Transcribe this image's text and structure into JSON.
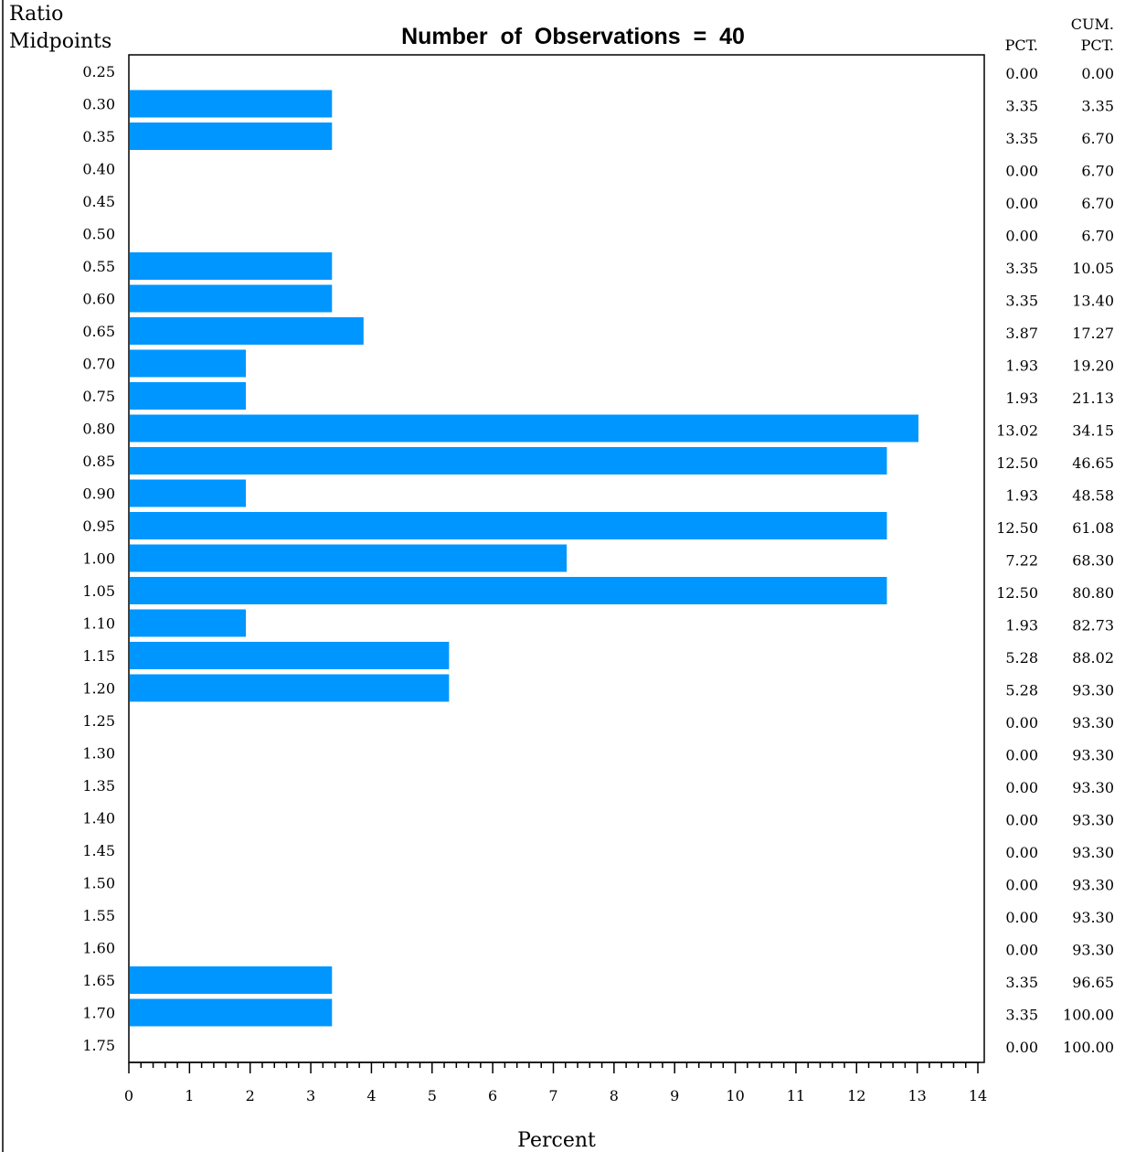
{
  "chart_data": {
    "type": "bar",
    "orientation": "horizontal",
    "title": "Number  of  Observations  =  40",
    "ylabel_line1": "Ratio",
    "ylabel_line2": "Midpoints",
    "xlabel": "Percent",
    "pct_header": "PCT.",
    "cum_header_line1": "CUM.",
    "cum_header_line2": "PCT.",
    "xlim": [
      0,
      14
    ],
    "xticks": [
      "0",
      "1",
      "2",
      "3",
      "4",
      "5",
      "6",
      "7",
      "8",
      "9",
      "10",
      "11",
      "12",
      "13",
      "14"
    ],
    "categories": [
      "0.25",
      "0.30",
      "0.35",
      "0.40",
      "0.45",
      "0.50",
      "0.55",
      "0.60",
      "0.65",
      "0.70",
      "0.75",
      "0.80",
      "0.85",
      "0.90",
      "0.95",
      "1.00",
      "1.05",
      "1.10",
      "1.15",
      "1.20",
      "1.25",
      "1.30",
      "1.35",
      "1.40",
      "1.45",
      "1.50",
      "1.55",
      "1.60",
      "1.65",
      "1.70",
      "1.75"
    ],
    "values": [
      0.0,
      3.35,
      3.35,
      0.0,
      0.0,
      0.0,
      3.35,
      3.35,
      3.87,
      1.93,
      1.93,
      13.02,
      12.5,
      1.93,
      12.5,
      7.22,
      12.5,
      1.93,
      5.28,
      5.28,
      0.0,
      0.0,
      0.0,
      0.0,
      0.0,
      0.0,
      0.0,
      0.0,
      3.35,
      3.35,
      0.0
    ],
    "pct_labels": [
      "0.00",
      "3.35",
      "3.35",
      "0.00",
      "0.00",
      "0.00",
      "3.35",
      "3.35",
      "3.87",
      "1.93",
      "1.93",
      "13.02",
      "12.50",
      "1.93",
      "12.50",
      "7.22",
      "12.50",
      "1.93",
      "5.28",
      "5.28",
      "0.00",
      "0.00",
      "0.00",
      "0.00",
      "0.00",
      "0.00",
      "0.00",
      "0.00",
      "3.35",
      "3.35",
      "0.00"
    ],
    "cum_labels": [
      "0.00",
      "3.35",
      "6.70",
      "6.70",
      "6.70",
      "6.70",
      "10.05",
      "13.40",
      "17.27",
      "19.20",
      "21.13",
      "34.15",
      "46.65",
      "48.58",
      "61.08",
      "68.30",
      "80.80",
      "82.73",
      "88.02",
      "93.30",
      "93.30",
      "93.30",
      "93.30",
      "93.30",
      "93.30",
      "93.30",
      "93.30",
      "93.30",
      "96.65",
      "100.00",
      "100.00"
    ],
    "bar_color": "#0096ff",
    "grid": false,
    "legend": "none"
  }
}
